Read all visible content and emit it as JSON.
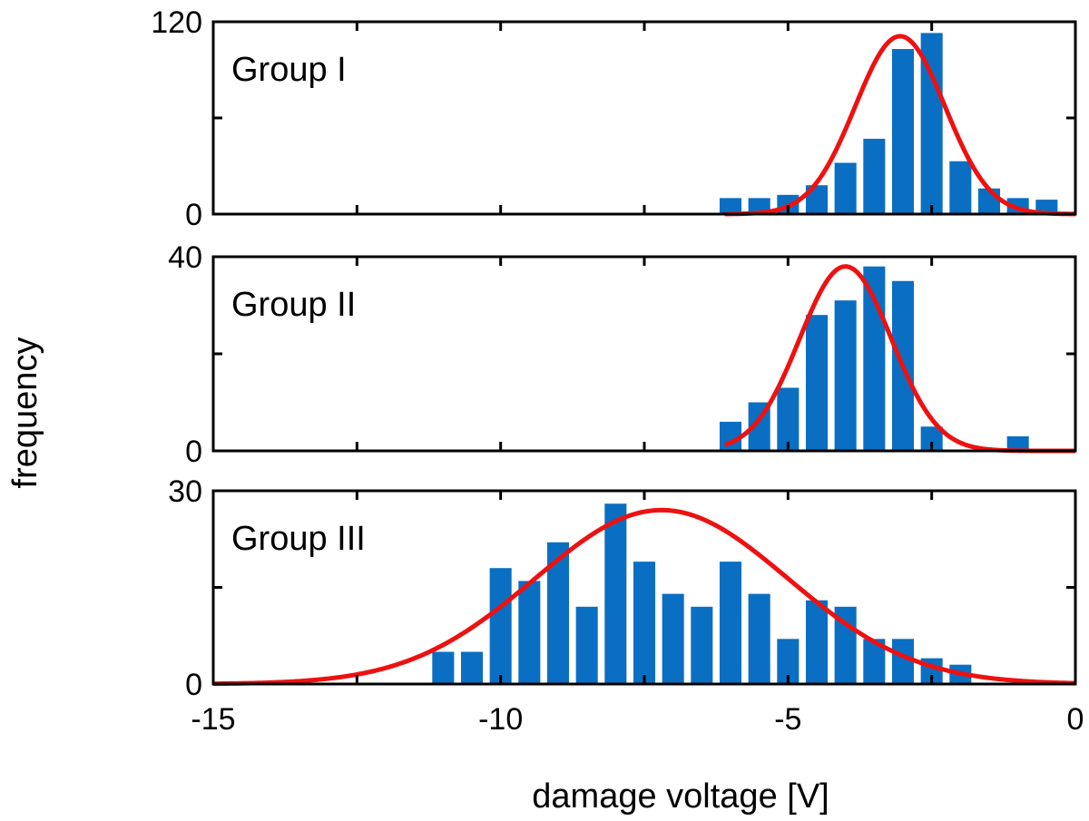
{
  "figure": {
    "ylabel": "frequency",
    "xlabel": "damage voltage [V]",
    "bar_color": "#0A6FC2",
    "fit_color": "#EE1111",
    "x_ticks": [
      -15,
      -10,
      -5,
      0
    ],
    "x_tick_labels": [
      "-15",
      "-10",
      "-5",
      "0"
    ]
  },
  "chart_data": [
    {
      "type": "bar",
      "panel_label": "Group I",
      "xlim": [
        -15,
        0
      ],
      "ylim": [
        0,
        120
      ],
      "y_ticks": [
        0,
        60,
        120
      ],
      "y_tick_labels": [
        "0",
        "",
        "120"
      ],
      "bin_width": 0.5,
      "bins": [
        -6,
        -5.5,
        -5,
        -4.5,
        -4,
        -3.5,
        -3,
        -2.5,
        -2,
        -1.5,
        -1,
        -0.5
      ],
      "values": [
        10,
        10,
        12,
        18,
        32,
        47,
        103,
        113,
        33,
        16,
        10,
        9
      ],
      "fit": {
        "type": "gaussian",
        "peak": 111,
        "mean": -3.05,
        "sigma": 0.78,
        "x_range": [
          -6.1,
          0
        ]
      }
    },
    {
      "type": "bar",
      "panel_label": "Group II",
      "xlim": [
        -15,
        0
      ],
      "ylim": [
        0,
        40
      ],
      "y_ticks": [
        0,
        20,
        40
      ],
      "y_tick_labels": [
        "0",
        "",
        "40"
      ],
      "bin_width": 0.5,
      "bins": [
        -6,
        -5.5,
        -5,
        -4.5,
        -4,
        -3.5,
        -3,
        -2.5,
        -1
      ],
      "values": [
        6,
        10,
        13,
        28,
        31,
        38,
        35,
        5,
        3
      ],
      "fit": {
        "type": "gaussian",
        "peak": 38,
        "mean": -4.0,
        "sigma": 0.8,
        "x_range": [
          -6.1,
          0
        ]
      }
    },
    {
      "type": "bar",
      "panel_label": "Group III",
      "xlim": [
        -15,
        0
      ],
      "ylim": [
        0,
        30
      ],
      "y_ticks": [
        0,
        15,
        30
      ],
      "y_tick_labels": [
        "0",
        "",
        "30"
      ],
      "bin_width": 0.5,
      "bins": [
        -11,
        -10.5,
        -10,
        -9.5,
        -9,
        -8.5,
        -8,
        -7.5,
        -7,
        -6.5,
        -6,
        -5.5,
        -5,
        -4.5,
        -4,
        -3.5,
        -3,
        -2.5,
        -2
      ],
      "values": [
        5,
        5,
        18,
        16,
        22,
        12,
        28,
        19,
        14,
        12,
        19,
        14,
        7,
        13,
        12,
        7,
        7,
        4,
        3
      ],
      "fit": {
        "type": "gaussian",
        "peak": 27,
        "mean": -7.2,
        "sigma": 2.2,
        "x_range": [
          -15,
          0
        ]
      }
    }
  ]
}
